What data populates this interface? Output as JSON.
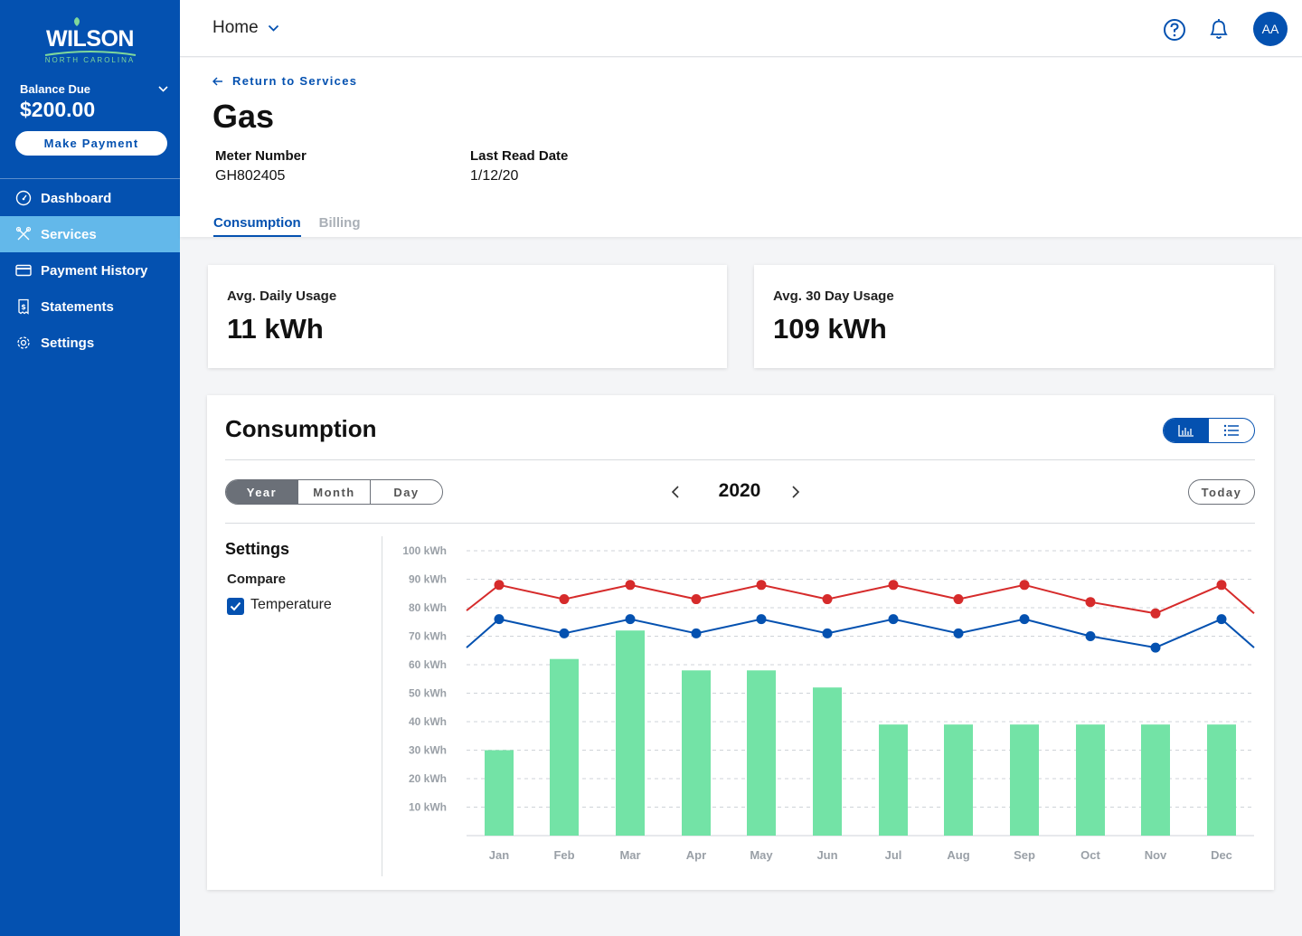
{
  "sidebar": {
    "logo": {
      "word": "WILSON",
      "sub": "NORTH CAROLINA"
    },
    "balance": {
      "label": "Balance Due",
      "amount": "$200.00"
    },
    "pay_button": "Make Payment",
    "nav": [
      {
        "label": "Dashboard",
        "icon": "gauge-icon"
      },
      {
        "label": "Services",
        "icon": "tools-icon",
        "active": true
      },
      {
        "label": "Payment History",
        "icon": "credit-card-icon"
      },
      {
        "label": "Statements",
        "icon": "receipt-icon"
      },
      {
        "label": "Settings",
        "icon": "gear-icon"
      }
    ]
  },
  "header": {
    "nav_label": "Home",
    "avatar": "AA"
  },
  "service": {
    "back_link": "Return to Services",
    "title": "Gas",
    "meter_label": "Meter Number",
    "meter_value": "GH802405",
    "read_label": "Last Read Date",
    "read_value": "1/12/20",
    "tabs": [
      "Consumption",
      "Billing"
    ]
  },
  "stats": [
    {
      "label": "Avg. Daily Usage",
      "value": "11 kWh"
    },
    {
      "label": "Avg. 30 Day Usage",
      "value": "109 kWh"
    }
  ],
  "consumption": {
    "title": "Consumption",
    "periods": [
      "Year",
      "Month",
      "Day"
    ],
    "year": "2020",
    "today": "Today",
    "settings_title": "Settings",
    "compare_label": "Compare",
    "temperature_label": "Temperature"
  },
  "colors": {
    "brand": "#0451b0",
    "bars": "#73e3a6",
    "line_red": "#d62b2b",
    "line_blue": "#0451b0",
    "nav_active": "#63b8ea"
  },
  "chart_data": {
    "type": "bar",
    "categories": [
      "Jan",
      "Feb",
      "Mar",
      "Apr",
      "May",
      "Jun",
      "Jul",
      "Aug",
      "Sep",
      "Oct",
      "Nov",
      "Dec"
    ],
    "ylim": [
      0,
      100
    ],
    "y_ticks": [
      "10 kWh",
      "20 kWh",
      "30 kWh",
      "40 kWh",
      "50 kWh",
      "60 kWh",
      "70 kWh",
      "80 kWh",
      "90 kWh",
      "100 kWh"
    ],
    "grid": true,
    "series": [
      {
        "kind": "bar",
        "values": [
          30,
          62,
          72,
          58,
          58,
          52,
          39,
          39,
          39,
          39,
          39,
          39
        ]
      },
      {
        "kind": "line",
        "values": [
          88,
          83,
          88,
          83,
          88,
          83,
          88,
          83,
          88,
          82,
          78,
          88
        ],
        "edges": [
          79,
          78
        ]
      },
      {
        "kind": "line",
        "values": [
          76,
          71,
          76,
          71,
          76,
          71,
          76,
          71,
          76,
          70,
          66,
          76
        ],
        "edges": [
          66,
          66
        ]
      }
    ]
  }
}
